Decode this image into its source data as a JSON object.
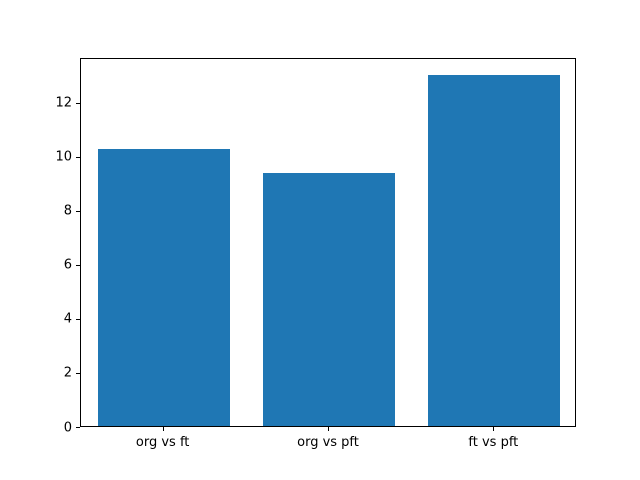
{
  "figure": {
    "background": "#ffffff",
    "spine_color": "#000000",
    "tick_label_color": "#000000"
  },
  "chart_data": {
    "type": "bar",
    "categories": [
      "org vs ft",
      "org vs pft",
      "ft vs pft"
    ],
    "values": [
      10.25,
      9.35,
      13.0
    ],
    "bar_color": "#1f77b4",
    "yticks": [
      0,
      2,
      4,
      6,
      8,
      10,
      12
    ],
    "ylim": [
      0,
      13.65
    ],
    "title": "",
    "xlabel": "",
    "ylabel": "",
    "grid": false,
    "legend": "none"
  }
}
